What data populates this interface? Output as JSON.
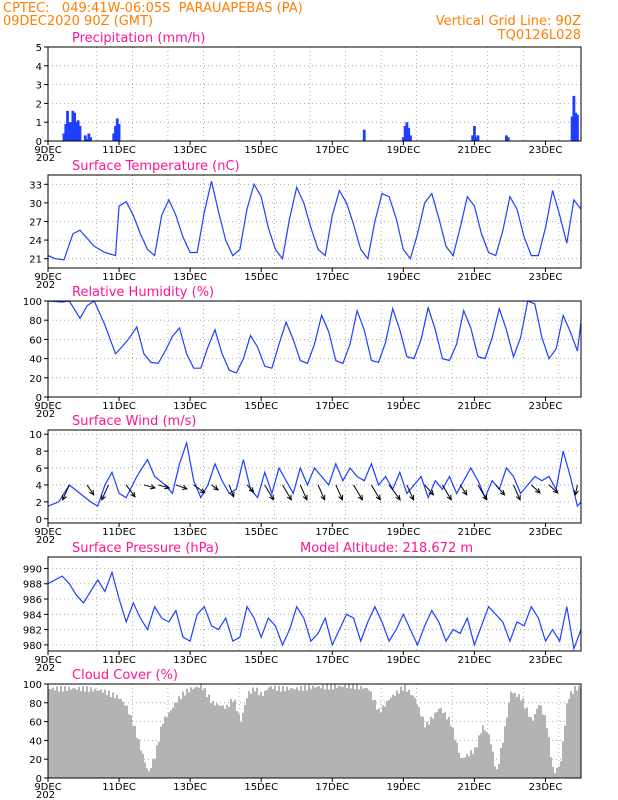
{
  "header": {
    "line1_left": "CPTEC:   049:41W-06:05S  PARAUAPEBAS (PA)",
    "line2_left": "09DEC2020 90Z (GMT)",
    "line2_right": "Vertical Grid Line: 90Z",
    "line3_right": "TQ0126L028"
  },
  "x_ticks": [
    "9DEC",
    "11DEC",
    "13DEC",
    "15DEC",
    "17DEC",
    "19DEC",
    "21DEC",
    "23DEC"
  ],
  "x_ticks_first": "9DEC",
  "year_label": "202",
  "colors": {
    "header": "#ff7f00",
    "title": "#ff1493",
    "line": "#1f3fff",
    "bar": "#1f3fff",
    "cloud": "#b3b3b3"
  },
  "chart_data": [
    {
      "type": "bar",
      "title": "Precipitation (mm/h)",
      "ylim": [
        0,
        5
      ],
      "yticks": [
        0,
        1,
        2,
        3,
        4,
        5
      ],
      "x_range_days": [
        9,
        24
      ],
      "x": [
        9.45,
        9.5,
        9.55,
        9.6,
        9.65,
        9.7,
        9.75,
        9.8,
        9.85,
        9.9,
        10.05,
        10.12,
        10.15,
        10.2,
        10.85,
        10.9,
        10.95,
        11.0,
        17.9,
        19.0,
        19.05,
        19.1,
        19.15,
        19.2,
        20.95,
        21.0,
        21.05,
        21.1,
        21.9,
        21.95,
        23.75,
        23.8,
        23.85,
        23.9
      ],
      "values": [
        0.4,
        0.9,
        1.6,
        1.0,
        1.0,
        1.6,
        1.5,
        1.0,
        1.1,
        0.8,
        0.3,
        0.1,
        0.4,
        0.2,
        0.4,
        0.8,
        1.2,
        0.9,
        0.6,
        0.2,
        0.8,
        1.0,
        0.7,
        0.3,
        0.3,
        0.8,
        0.2,
        0.3,
        0.3,
        0.2,
        1.3,
        2.4,
        1.5,
        1.4
      ]
    },
    {
      "type": "line",
      "title": "Surface Temperature (nC)",
      "ylim": [
        19.5,
        34.5
      ],
      "yticks": [
        21,
        24,
        27,
        30,
        33
      ],
      "series": [
        {
          "x": [
            9.0,
            9.2,
            9.45,
            9.7,
            9.9,
            10.3,
            10.6,
            10.9,
            11.0,
            11.2,
            11.4,
            11.6,
            11.8,
            12.0,
            12.2,
            12.4,
            12.6,
            12.8,
            13.0,
            13.2,
            13.4,
            13.6,
            13.8,
            14.0,
            14.2,
            14.4,
            14.6,
            14.8,
            15.0,
            15.2,
            15.4,
            15.6,
            15.8,
            16.0,
            16.2,
            16.4,
            16.6,
            16.8,
            17.0,
            17.2,
            17.4,
            17.6,
            17.8,
            18.0,
            18.2,
            18.4,
            18.6,
            18.8,
            19.0,
            19.2,
            19.4,
            19.6,
            19.8,
            20.0,
            20.2,
            20.4,
            20.6,
            20.8,
            21.0,
            21.2,
            21.4,
            21.6,
            21.8,
            22.0,
            22.2,
            22.4,
            22.6,
            22.8,
            23.0,
            23.2,
            23.4,
            23.6,
            23.8,
            24.0
          ],
          "values": [
            21.5,
            21.0,
            20.8,
            25.0,
            25.6,
            23.0,
            22.0,
            21.5,
            29.5,
            30.2,
            28.0,
            25.0,
            22.5,
            21.5,
            28.0,
            30.5,
            28.0,
            24.5,
            22.0,
            22.0,
            28.5,
            33.5,
            28.5,
            24.0,
            21.5,
            22.5,
            29.0,
            33.0,
            31.0,
            26.0,
            22.5,
            21.0,
            27.5,
            32.5,
            30.0,
            26.0,
            22.5,
            21.5,
            28.0,
            32.0,
            30.0,
            26.5,
            22.5,
            21.0,
            27.0,
            31.5,
            31.0,
            27.5,
            22.5,
            21.0,
            25.0,
            30.0,
            31.5,
            27.5,
            23.0,
            21.5,
            26.0,
            31.0,
            29.5,
            25.0,
            22.0,
            21.5,
            25.5,
            31.0,
            29.0,
            24.5,
            21.5,
            21.5,
            26.0,
            32.0,
            28.0,
            23.5,
            30.5,
            29.0
          ]
        }
      ]
    },
    {
      "type": "line",
      "title": "Relative Humidity (%)",
      "ylim": [
        0,
        100
      ],
      "yticks": [
        0,
        20,
        40,
        60,
        80,
        100
      ],
      "series": [
        {
          "x": [
            9.0,
            9.4,
            9.6,
            9.9,
            10.1,
            10.3,
            10.6,
            10.9,
            11.1,
            11.3,
            11.5,
            11.7,
            11.9,
            12.1,
            12.3,
            12.5,
            12.7,
            12.9,
            13.1,
            13.3,
            13.5,
            13.7,
            13.9,
            14.1,
            14.3,
            14.5,
            14.7,
            14.9,
            15.1,
            15.3,
            15.5,
            15.7,
            15.9,
            16.1,
            16.3,
            16.5,
            16.7,
            16.9,
            17.1,
            17.3,
            17.5,
            17.7,
            17.9,
            18.1,
            18.3,
            18.5,
            18.7,
            18.9,
            19.1,
            19.3,
            19.5,
            19.7,
            19.9,
            20.1,
            20.3,
            20.5,
            20.7,
            20.9,
            21.1,
            21.3,
            21.5,
            21.7,
            21.9,
            22.1,
            22.3,
            22.5,
            22.7,
            22.9,
            23.1,
            23.3,
            23.5,
            23.7,
            23.9,
            24.0
          ],
          "values": [
            100,
            99,
            100,
            82,
            95,
            100,
            75,
            45,
            53,
            62,
            73,
            45,
            36,
            35,
            48,
            63,
            72,
            45,
            30,
            30,
            52,
            70,
            45,
            28,
            25,
            40,
            64,
            52,
            32,
            30,
            55,
            78,
            60,
            38,
            35,
            55,
            85,
            68,
            38,
            35,
            55,
            90,
            70,
            38,
            36,
            57,
            92,
            70,
            42,
            40,
            60,
            93,
            70,
            40,
            38,
            55,
            90,
            72,
            42,
            40,
            62,
            92,
            70,
            42,
            62,
            100,
            97,
            62,
            40,
            50,
            85,
            68,
            48,
            78
          ]
        }
      ]
    },
    {
      "type": "line",
      "title": "Surface Wind (m/s)",
      "ylim": [
        -0.5,
        10.5
      ],
      "yticks": [
        0,
        2,
        4,
        6,
        8,
        10
      ],
      "series": [
        {
          "x": [
            9.0,
            9.3,
            9.6,
            9.9,
            10.2,
            10.4,
            10.6,
            10.8,
            11.0,
            11.2,
            11.5,
            11.8,
            12.0,
            12.3,
            12.5,
            12.7,
            12.9,
            13.1,
            13.3,
            13.5,
            13.7,
            13.9,
            14.1,
            14.3,
            14.5,
            14.7,
            14.9,
            15.1,
            15.3,
            15.5,
            15.7,
            15.9,
            16.1,
            16.3,
            16.5,
            16.7,
            16.9,
            17.1,
            17.3,
            17.5,
            17.7,
            17.9,
            18.1,
            18.3,
            18.5,
            18.7,
            18.9,
            19.1,
            19.3,
            19.5,
            19.7,
            19.9,
            20.1,
            20.3,
            20.5,
            20.7,
            20.9,
            21.1,
            21.3,
            21.5,
            21.7,
            21.9,
            22.1,
            22.3,
            22.5,
            22.7,
            22.9,
            23.1,
            23.3,
            23.5,
            23.7,
            23.9,
            24.0
          ],
          "values": [
            1.5,
            2.0,
            4.0,
            3.0,
            2.0,
            1.5,
            4.0,
            5.5,
            3.0,
            2.5,
            5.0,
            7.0,
            5.0,
            4.0,
            3.0,
            6.5,
            9.0,
            4.5,
            2.5,
            4.0,
            6.5,
            4.5,
            3.0,
            3.5,
            7.0,
            3.5,
            2.5,
            5.5,
            3.0,
            6.0,
            4.5,
            3.0,
            6.0,
            4.0,
            6.0,
            5.0,
            4.0,
            6.5,
            4.5,
            6.0,
            5.0,
            4.5,
            6.5,
            4.0,
            5.0,
            3.5,
            5.5,
            3.0,
            4.0,
            5.0,
            2.5,
            4.5,
            3.5,
            5.0,
            3.0,
            4.5,
            6.0,
            4.5,
            2.5,
            4.5,
            3.5,
            6.0,
            5.0,
            3.0,
            4.0,
            5.0,
            4.5,
            5.0,
            3.5,
            8.0,
            5.0,
            1.5,
            2.0
          ]
        }
      ],
      "arrows": {
        "x": [
          9.6,
          10.1,
          10.7,
          11.2,
          11.7,
          12.1,
          12.6,
          13.1,
          13.6,
          14.1,
          14.6,
          15.1,
          15.6,
          16.1,
          16.6,
          17.1,
          17.6,
          18.1,
          18.6,
          19.1,
          19.6,
          20.1,
          20.6,
          21.1,
          21.6,
          22.1,
          22.6,
          23.1,
          23.9
        ],
        "dx": [
          -0.3,
          0.3,
          -0.3,
          0.4,
          0.5,
          0.5,
          0.5,
          0.5,
          0.3,
          0.2,
          0.3,
          0.4,
          0.4,
          0.3,
          0.3,
          0.3,
          0.4,
          0.4,
          0.5,
          0.3,
          0.4,
          0.4,
          0.3,
          0.4,
          0.4,
          0.3,
          0.4,
          0.4,
          -0.1
        ],
        "dy": [
          1.5,
          1.0,
          1.5,
          1.2,
          0.3,
          0.3,
          0.4,
          0.8,
          0.5,
          1.2,
          0.7,
          1.5,
          1.5,
          1.5,
          1.5,
          1.5,
          1.5,
          1.5,
          1.5,
          1.5,
          1.0,
          1.5,
          1.0,
          1.5,
          1.0,
          1.5,
          0.8,
          0.8,
          1.0
        ]
      }
    },
    {
      "type": "line",
      "title": "Surface Pressure (hPa)",
      "annotation": "Model Altitude: 218.672  m",
      "ylim": [
        979.2,
        991.5
      ],
      "yticks": [
        980,
        982,
        984,
        986,
        988,
        990
      ],
      "series": [
        {
          "x": [
            9.0,
            9.2,
            9.4,
            9.6,
            9.8,
            10.0,
            10.2,
            10.4,
            10.6,
            10.8,
            11.0,
            11.2,
            11.4,
            11.6,
            11.8,
            12.0,
            12.2,
            12.4,
            12.6,
            12.8,
            13.0,
            13.2,
            13.4,
            13.6,
            13.8,
            14.0,
            14.2,
            14.4,
            14.6,
            14.8,
            15.0,
            15.2,
            15.4,
            15.6,
            15.8,
            16.0,
            16.2,
            16.4,
            16.6,
            16.8,
            17.0,
            17.2,
            17.4,
            17.6,
            17.8,
            18.0,
            18.2,
            18.4,
            18.6,
            18.8,
            19.0,
            19.2,
            19.4,
            19.6,
            19.8,
            20.0,
            20.2,
            20.4,
            20.6,
            20.8,
            21.0,
            21.2,
            21.4,
            21.6,
            21.8,
            22.0,
            22.2,
            22.4,
            22.6,
            22.8,
            23.0,
            23.2,
            23.4,
            23.6,
            23.8,
            24.0
          ],
          "values": [
            988.0,
            988.5,
            989.0,
            988.0,
            986.5,
            985.5,
            987.0,
            988.5,
            987.0,
            989.5,
            986.0,
            983.0,
            985.5,
            983.5,
            982.0,
            985.0,
            983.5,
            983.0,
            984.5,
            981.0,
            980.5,
            984.0,
            985.0,
            982.5,
            982.0,
            983.5,
            980.5,
            981.0,
            985.0,
            983.5,
            981.0,
            983.5,
            982.5,
            980.0,
            982.0,
            985.0,
            983.5,
            980.5,
            981.5,
            983.5,
            980.0,
            982.0,
            984.0,
            983.5,
            980.5,
            983.0,
            985.0,
            983.0,
            980.5,
            982.0,
            984.0,
            982.0,
            980.0,
            982.5,
            984.5,
            983.0,
            980.5,
            982.0,
            981.5,
            983.5,
            980.0,
            982.5,
            985.0,
            984.0,
            983.0,
            980.5,
            983.0,
            982.5,
            985.0,
            983.5,
            980.5,
            982.0,
            980.5,
            985.0,
            979.5,
            982.0
          ]
        }
      ]
    },
    {
      "type": "area",
      "title": "Cloud Cover (%)",
      "ylim": [
        0,
        100
      ],
      "yticks": [
        0,
        20,
        40,
        60,
        80,
        100
      ],
      "series": [
        {
          "x": [
            9.0,
            9.5,
            10.0,
            10.5,
            11.0,
            11.2,
            11.4,
            11.6,
            11.8,
            12.0,
            12.2,
            12.4,
            12.6,
            12.8,
            13.0,
            13.3,
            13.6,
            14.0,
            14.2,
            14.4,
            14.6,
            14.8,
            15.0,
            15.2,
            15.5,
            16.0,
            16.5,
            17.0,
            17.5,
            18.0,
            18.3,
            18.6,
            19.0,
            19.3,
            19.6,
            20.0,
            20.3,
            20.6,
            21.0,
            21.2,
            21.4,
            21.6,
            21.8,
            22.0,
            22.3,
            22.6,
            22.8,
            23.0,
            23.2,
            23.4,
            23.6,
            23.8,
            24.0
          ],
          "values": [
            95,
            95,
            95,
            93,
            85,
            75,
            55,
            30,
            5,
            25,
            60,
            70,
            82,
            90,
            95,
            98,
            80,
            75,
            85,
            60,
            90,
            95,
            88,
            97,
            95,
            95,
            97,
            97,
            98,
            95,
            70,
            85,
            97,
            85,
            55,
            75,
            60,
            20,
            30,
            55,
            45,
            5,
            45,
            92,
            85,
            60,
            80,
            60,
            5,
            15,
            85,
            95,
            97
          ]
        }
      ]
    }
  ]
}
